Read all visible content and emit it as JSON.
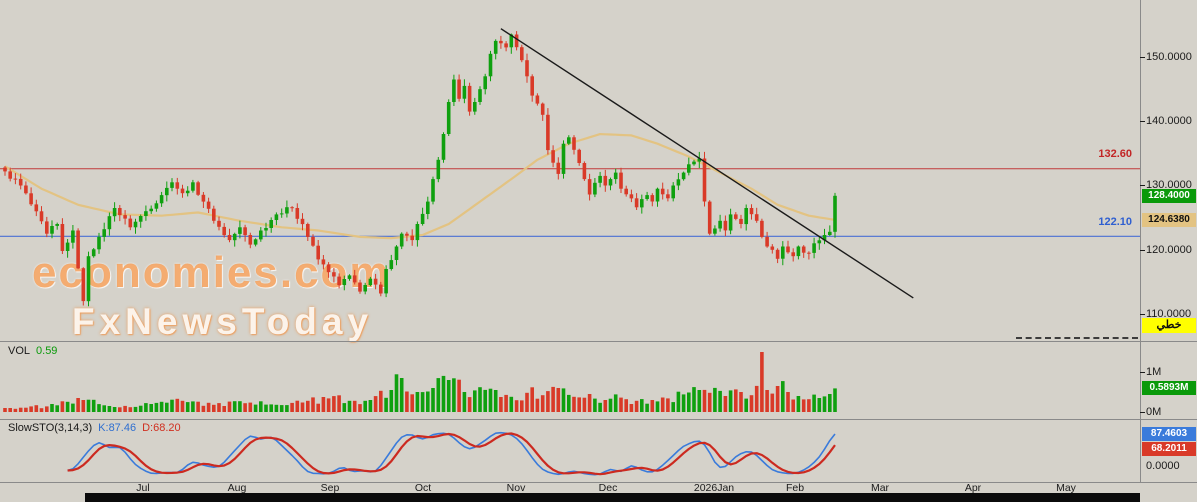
{
  "window": {
    "background": "#d5d2ca"
  },
  "price_axis": {
    "tick_labels": [
      "150.0000",
      "140.0000",
      "130.0000",
      "120.0000",
      "110.0000"
    ],
    "tick_prices": [
      150,
      140,
      130,
      120,
      110
    ],
    "current_price_badge": {
      "text": "128.4000",
      "color": "#0a9a0a"
    },
    "ma_badge": {
      "text": "124.6380",
      "color": "#e3c382"
    },
    "tool_badge": {
      "text": "خطي",
      "color": "#ffff00"
    }
  },
  "hlines": [
    {
      "price": 132.6,
      "label": "132.60",
      "color": "#c22525"
    },
    {
      "price": 122.1,
      "label": "122.10",
      "color": "#2f5fd0"
    }
  ],
  "watermark": {
    "line1": "economies.com",
    "line2": "FxNewsToday"
  },
  "volume_pane": {
    "title": "VOL",
    "value": "0.59",
    "labels": {
      "top": "1M",
      "bottom": "0M"
    },
    "badge": {
      "text": "0.5893M",
      "color": "#0a9a0a"
    }
  },
  "sto_pane": {
    "title": "SlowSTO(3,14,3)",
    "k_label": "K:87.46",
    "d_label": "D:68.20",
    "k_badge": "87.4603",
    "d_badge": "68.2011",
    "zero_label": "0.0000"
  },
  "x_axis": {
    "labels": [
      "Jul",
      "Aug",
      "Sep",
      "Oct",
      "Nov",
      "Dec",
      "2026Jan",
      "Feb",
      "Mar",
      "Apr",
      "May"
    ]
  },
  "chart_data": {
    "type": "candlestick+volume+stochastic",
    "title": "Daily price chart with linear regression trendline, horizontal support/resistance at 122.10 and resistance 132.60",
    "candle_count": 160,
    "y_range": [
      105,
      158
    ],
    "last_close": 128.4,
    "hline_prices": [
      132.6,
      122.1
    ],
    "close_keypoints": [
      [
        0,
        132.2
      ],
      [
        3,
        130
      ],
      [
        8,
        122.5
      ],
      [
        10,
        124
      ],
      [
        11,
        119.8
      ],
      [
        13,
        123
      ],
      [
        15,
        112
      ],
      [
        16,
        119
      ],
      [
        18,
        122
      ],
      [
        21,
        126.5
      ],
      [
        24,
        123.5
      ],
      [
        27,
        126
      ],
      [
        30,
        128.5
      ],
      [
        32,
        130.5
      ],
      [
        34,
        128.8
      ],
      [
        36,
        130.5
      ],
      [
        38,
        127.5
      ],
      [
        40,
        124.5
      ],
      [
        43,
        121.5
      ],
      [
        45,
        123.5
      ],
      [
        47,
        120.8
      ],
      [
        49,
        123
      ],
      [
        52,
        125.5
      ],
      [
        55,
        126.5
      ],
      [
        57,
        124
      ],
      [
        58,
        122
      ],
      [
        60,
        118.5
      ],
      [
        62,
        116.5
      ],
      [
        64,
        114.5
      ],
      [
        66,
        116
      ],
      [
        68,
        113.5
      ],
      [
        70,
        115.5
      ],
      [
        72,
        113.2
      ],
      [
        73,
        117
      ],
      [
        75,
        120.5
      ],
      [
        76,
        122.5
      ],
      [
        78,
        121.5
      ],
      [
        79,
        124
      ],
      [
        81,
        127.5
      ],
      [
        82,
        131
      ],
      [
        83,
        134
      ],
      [
        85,
        143
      ],
      [
        86,
        146.5
      ],
      [
        87,
        143.5
      ],
      [
        88,
        145.5
      ],
      [
        89,
        141.5
      ],
      [
        90,
        143
      ],
      [
        92,
        147
      ],
      [
        93,
        150.5
      ],
      [
        94,
        152.5
      ],
      [
        96,
        151.5
      ],
      [
        97,
        153.5
      ],
      [
        99,
        149.5
      ],
      [
        100,
        147
      ],
      [
        101,
        144
      ],
      [
        103,
        141
      ],
      [
        104,
        135.5
      ],
      [
        106,
        131.8
      ],
      [
        107,
        136.5
      ],
      [
        108,
        137.5
      ],
      [
        110,
        133.5
      ],
      [
        111,
        131
      ],
      [
        112,
        128.6
      ],
      [
        114,
        131.5
      ],
      [
        115,
        130
      ],
      [
        117,
        132
      ],
      [
        118,
        129.5
      ],
      [
        120,
        128
      ],
      [
        121,
        126.6
      ],
      [
        123,
        128.5
      ],
      [
        124,
        127.5
      ],
      [
        125,
        129.5
      ],
      [
        127,
        128
      ],
      [
        128,
        130
      ],
      [
        130,
        132
      ],
      [
        131,
        133.3
      ],
      [
        133,
        134.2
      ],
      [
        134,
        127.5
      ],
      [
        135,
        122.5
      ],
      [
        137,
        124.5
      ],
      [
        138,
        123
      ],
      [
        139,
        125.5
      ],
      [
        141,
        124
      ],
      [
        142,
        126.5
      ],
      [
        144,
        124.5
      ],
      [
        145,
        122
      ],
      [
        147,
        120
      ],
      [
        148,
        118.6
      ],
      [
        149,
        120.5
      ],
      [
        151,
        119
      ],
      [
        152,
        120.5
      ],
      [
        154,
        119.5
      ],
      [
        155,
        121
      ],
      [
        157,
        122.3
      ],
      [
        158,
        122.8
      ],
      [
        159,
        128.4
      ]
    ],
    "volume_keypoints": [
      [
        0,
        0.1
      ],
      [
        8,
        0.14
      ],
      [
        15,
        0.3
      ],
      [
        20,
        0.15
      ],
      [
        28,
        0.2
      ],
      [
        34,
        0.28
      ],
      [
        40,
        0.18
      ],
      [
        46,
        0.22
      ],
      [
        52,
        0.18
      ],
      [
        58,
        0.28
      ],
      [
        62,
        0.34
      ],
      [
        66,
        0.28
      ],
      [
        70,
        0.3
      ],
      [
        74,
        0.55
      ],
      [
        76,
        0.85
      ],
      [
        79,
        0.5
      ],
      [
        82,
        0.6
      ],
      [
        85,
        0.8
      ],
      [
        88,
        0.5
      ],
      [
        91,
        0.62
      ],
      [
        94,
        0.55
      ],
      [
        97,
        0.38
      ],
      [
        100,
        0.48
      ],
      [
        103,
        0.42
      ],
      [
        106,
        0.6
      ],
      [
        109,
        0.38
      ],
      [
        112,
        0.45
      ],
      [
        115,
        0.3
      ],
      [
        118,
        0.36
      ],
      [
        121,
        0.28
      ],
      [
        124,
        0.3
      ],
      [
        127,
        0.34
      ],
      [
        130,
        0.44
      ],
      [
        133,
        0.55
      ],
      [
        135,
        0.48
      ],
      [
        138,
        0.4
      ],
      [
        141,
        0.5
      ],
      [
        143,
        0.42
      ],
      [
        145,
        1.5
      ],
      [
        146,
        0.55
      ],
      [
        148,
        0.65
      ],
      [
        150,
        0.5
      ],
      [
        152,
        0.4
      ],
      [
        154,
        0.32
      ],
      [
        156,
        0.35
      ],
      [
        158,
        0.45
      ],
      [
        159,
        0.59
      ]
    ],
    "sto_k_keypoints": [
      [
        13,
        15
      ],
      [
        16,
        55
      ],
      [
        18,
        75
      ],
      [
        20,
        58
      ],
      [
        22,
        65
      ],
      [
        25,
        25
      ],
      [
        28,
        8
      ],
      [
        32,
        12
      ],
      [
        33,
        8
      ],
      [
        36,
        35
      ],
      [
        38,
        25
      ],
      [
        41,
        20
      ],
      [
        44,
        55
      ],
      [
        47,
        88
      ],
      [
        49,
        75
      ],
      [
        51,
        85
      ],
      [
        53,
        65
      ],
      [
        56,
        35
      ],
      [
        58,
        10
      ],
      [
        62,
        8
      ],
      [
        65,
        25
      ],
      [
        66,
        12
      ],
      [
        69,
        15
      ],
      [
        71,
        10
      ],
      [
        74,
        55
      ],
      [
        76,
        85
      ],
      [
        78,
        88
      ],
      [
        80,
        75
      ],
      [
        82,
        88
      ],
      [
        85,
        90
      ],
      [
        87,
        70
      ],
      [
        89,
        55
      ],
      [
        92,
        75
      ],
      [
        94,
        92
      ],
      [
        97,
        88
      ],
      [
        99,
        70
      ],
      [
        101,
        40
      ],
      [
        103,
        15
      ],
      [
        106,
        6
      ],
      [
        109,
        15
      ],
      [
        111,
        8
      ],
      [
        114,
        6
      ],
      [
        116,
        20
      ],
      [
        118,
        10
      ],
      [
        120,
        28
      ],
      [
        122,
        15
      ],
      [
        124,
        10
      ],
      [
        126,
        25
      ],
      [
        128,
        45
      ],
      [
        130,
        65
      ],
      [
        132,
        72
      ],
      [
        133,
        78
      ],
      [
        135,
        55
      ],
      [
        136,
        25
      ],
      [
        138,
        18
      ],
      [
        139,
        35
      ],
      [
        141,
        50
      ],
      [
        143,
        55
      ],
      [
        145,
        35
      ],
      [
        147,
        15
      ],
      [
        149,
        10
      ],
      [
        151,
        8
      ],
      [
        153,
        15
      ],
      [
        155,
        30
      ],
      [
        157,
        55
      ],
      [
        158,
        78
      ],
      [
        159,
        88
      ]
    ],
    "ma_keypoints": [
      [
        0,
        133
      ],
      [
        7,
        129.5
      ],
      [
        14,
        127
      ],
      [
        22,
        125.5
      ],
      [
        30,
        125.3
      ],
      [
        37,
        125.8
      ],
      [
        45,
        124.5
      ],
      [
        53,
        123.5
      ],
      [
        60,
        123
      ],
      [
        68,
        122
      ],
      [
        74,
        121.8
      ],
      [
        80,
        122.3
      ],
      [
        85,
        124
      ],
      [
        91,
        127.5
      ],
      [
        97,
        131
      ],
      [
        102,
        134
      ],
      [
        108,
        136.5
      ],
      [
        114,
        138
      ],
      [
        120,
        137.8
      ],
      [
        125,
        136.5
      ],
      [
        131,
        134.5
      ],
      [
        137,
        132
      ],
      [
        143,
        129.5
      ],
      [
        148,
        127
      ],
      [
        154,
        125.3
      ],
      [
        159,
        124.64
      ]
    ],
    "trendline": {
      "i1": 95,
      "p1": 154.4,
      "i2": 174,
      "p2": 112.5
    },
    "colors": {
      "up": "#0fa00f",
      "down": "#d93a28",
      "ma": "#e3c382",
      "k": "#3a7bdb",
      "d": "#cc2a20",
      "trend": "#1a1a1a",
      "hline_res": "#c23b3b",
      "hline_sup": "#4a6fd4"
    }
  }
}
